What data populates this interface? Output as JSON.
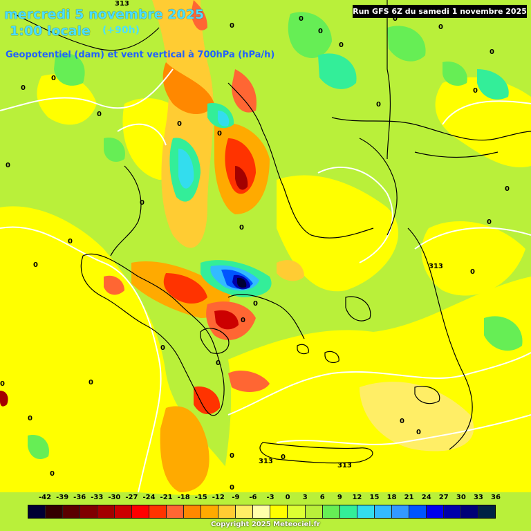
{
  "header": {
    "date_line": "mercredi 5 novembre 2025",
    "time_line": "1:00 locale",
    "lead_time": "(+90h)",
    "parameter_line": "Geopotentiel (dam) et vent vertical à 700hPa (hPa/h)"
  },
  "run_info": "Run GFS 6Z du samedi 1 novembre 2025",
  "legend": {
    "values": [
      "-42",
      "-39",
      "-36",
      "-33",
      "-30",
      "-27",
      "-24",
      "-21",
      "-18",
      "-15",
      "-12",
      "-9",
      "-6",
      "-3",
      "0",
      "3",
      "6",
      "9",
      "12",
      "15",
      "18",
      "21",
      "24",
      "27",
      "30",
      "33",
      "36"
    ],
    "colors": [
      "#000033",
      "#330000",
      "#5a0000",
      "#800000",
      "#a30000",
      "#cc0000",
      "#ff0000",
      "#ff3300",
      "#ff6633",
      "#ff8800",
      "#ffaa00",
      "#ffcc33",
      "#ffee66",
      "#ffffaa",
      "#ffff00",
      "#ddff33",
      "#b9f03a",
      "#66ee55",
      "#33ee99",
      "#33ddee",
      "#33bbff",
      "#3399ff",
      "#0055ff",
      "#0000ee",
      "#0000aa",
      "#000077",
      "#002244"
    ]
  },
  "map": {
    "contour_labels": [
      "0",
      "313"
    ],
    "colors": {
      "background": "#b9f03a",
      "coast": "#000000",
      "contour": "#ffffff"
    }
  },
  "copyright": "Copyright 2025 Meteociel.fr"
}
